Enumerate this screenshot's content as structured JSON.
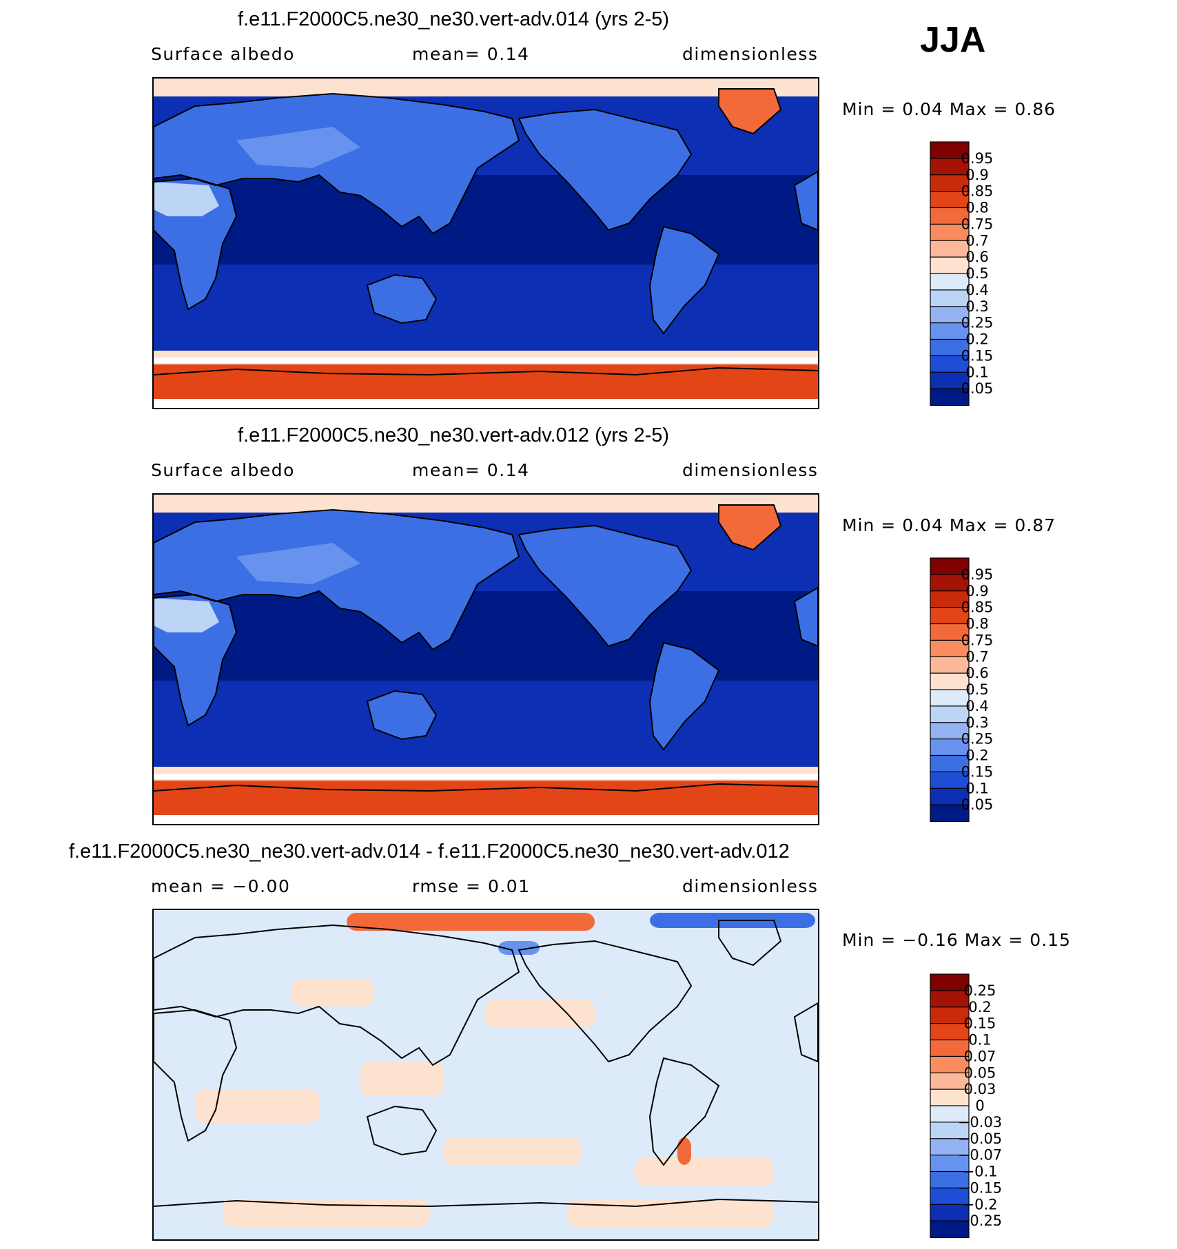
{
  "season": "JJA",
  "panels": [
    {
      "title": "f.e11.F2000C5.ne30_ne30.vert-adv.014 (yrs 2-5)",
      "left": "Surface albedo",
      "center": "mean=    0.14",
      "right": "dimensionless",
      "minmax": "Min =    0.04  Max =    0.86",
      "kind": "abs",
      "colorbar": {
        "labels": [
          "0.95",
          "0.9",
          "0.85",
          "0.8",
          "0.75",
          "0.7",
          "0.6",
          "0.5",
          "0.4",
          "0.3",
          "0.25",
          "0.2",
          "0.15",
          "0.1",
          "0.05"
        ],
        "colors": [
          "#7f0000",
          "#a41305",
          "#c82a0c",
          "#e34517",
          "#f36a3a",
          "#f98d60",
          "#fcb89a",
          "#fde2cf",
          "#dceaf9",
          "#bcd4f6",
          "#93b3f3",
          "#6792ee",
          "#3d6fe4",
          "#1e4ed6",
          "#0c2fb3",
          "#001a85"
        ]
      }
    },
    {
      "title": "f.e11.F2000C5.ne30_ne30.vert-adv.012 (yrs 2-5)",
      "left": "Surface albedo",
      "center": "mean=    0.14",
      "right": "dimensionless",
      "minmax": "Min =    0.04  Max =    0.87",
      "kind": "abs",
      "colorbar": {
        "labels": [
          "0.95",
          "0.9",
          "0.85",
          "0.8",
          "0.75",
          "0.7",
          "0.6",
          "0.5",
          "0.4",
          "0.3",
          "0.25",
          "0.2",
          "0.15",
          "0.1",
          "0.05"
        ],
        "colors": [
          "#7f0000",
          "#a41305",
          "#c82a0c",
          "#e34517",
          "#f36a3a",
          "#f98d60",
          "#fcb89a",
          "#fde2cf",
          "#dceaf9",
          "#bcd4f6",
          "#93b3f3",
          "#6792ee",
          "#3d6fe4",
          "#1e4ed6",
          "#0c2fb3",
          "#001a85"
        ]
      }
    },
    {
      "title": "f.e11.F2000C5.ne30_ne30.vert-adv.014 - f.e11.F2000C5.ne30_ne30.vert-adv.012",
      "left": "mean =   −0.00",
      "center": "rmse =    0.01",
      "right": "dimensionless",
      "minmax": "Min =  −0.16  Max =    0.15",
      "kind": "diff",
      "colorbar": {
        "labels": [
          "0.25",
          "0.2",
          "0.15",
          "0.1",
          "0.07",
          "0.05",
          "0.03",
          "0",
          "−0.03",
          "−0.05",
          "−0.07",
          "−0.1",
          "−0.15",
          "−0.2",
          "−0.25"
        ],
        "colors": [
          "#7f0000",
          "#a41305",
          "#c82a0c",
          "#e34517",
          "#f36a3a",
          "#f98d60",
          "#fcb89a",
          "#fde2cf",
          "#dceaf9",
          "#bcd4f6",
          "#93b3f3",
          "#6792ee",
          "#3d6fe4",
          "#1e4ed6",
          "#0c2fb3",
          "#001a85"
        ]
      }
    }
  ]
}
